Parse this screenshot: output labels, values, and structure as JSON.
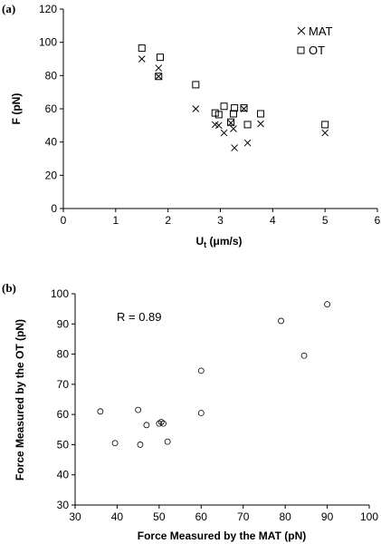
{
  "chart_data": [
    {
      "panel_label": "(a)",
      "type": "scatter",
      "xlabel": {
        "main": "U",
        "sub": "t",
        "rest": " (μm/s)"
      },
      "ylabel": "F (pN)",
      "xlim": [
        0,
        6
      ],
      "ylim": [
        0,
        120
      ],
      "xticks": [
        0,
        1,
        2,
        3,
        4,
        5,
        6
      ],
      "yticks": [
        0,
        20,
        40,
        60,
        80,
        100,
        120
      ],
      "grid": false,
      "legend_position": "top-right",
      "series": [
        {
          "name": "MAT",
          "marker": "x",
          "points": [
            [
              1.5,
              90
            ],
            [
              1.82,
              84.5
            ],
            [
              1.82,
              79.5
            ],
            [
              2.53,
              60
            ],
            [
              2.9,
              50.5
            ],
            [
              2.97,
              50
            ],
            [
              3.07,
              45.5
            ],
            [
              3.2,
              51.5
            ],
            [
              3.25,
              48
            ],
            [
              3.27,
              36.5
            ],
            [
              3.45,
              60
            ],
            [
              3.52,
              39.5
            ],
            [
              3.77,
              51
            ],
            [
              5.0,
              45.5
            ]
          ]
        },
        {
          "name": "OT",
          "marker": "square",
          "points": [
            [
              1.5,
              96.5
            ],
            [
              1.85,
              91
            ],
            [
              1.82,
              79.5
            ],
            [
              2.53,
              74.5
            ],
            [
              2.9,
              57.5
            ],
            [
              2.97,
              56.5
            ],
            [
              3.07,
              61.5
            ],
            [
              3.2,
              52
            ],
            [
              3.25,
              57
            ],
            [
              3.27,
              60.5
            ],
            [
              3.45,
              60.5
            ],
            [
              3.52,
              50.5
            ],
            [
              3.77,
              57
            ],
            [
              5.0,
              50.5
            ]
          ]
        }
      ]
    },
    {
      "panel_label": "(b)",
      "type": "scatter",
      "xlabel": "Force Measured by the MAT (pN)",
      "ylabel": "Force Measured by the OT (pN)",
      "xlim": [
        30,
        100
      ],
      "ylim": [
        30,
        100
      ],
      "xticks": [
        30,
        40,
        50,
        60,
        70,
        80,
        90,
        100
      ],
      "yticks": [
        30,
        40,
        50,
        60,
        70,
        80,
        90,
        100
      ],
      "grid": false,
      "annotation": "R = 0.89",
      "series": [
        {
          "marker": "circle",
          "points": [
            [
              36,
              61
            ],
            [
              39.5,
              50.5
            ],
            [
              45,
              61.5
            ],
            [
              45.5,
              50
            ],
            [
              47,
              56.5
            ],
            [
              50,
              57
            ],
            [
              50.5,
              57.5
            ],
            [
              51,
              57
            ],
            [
              52,
              51
            ],
            [
              60,
              74.5
            ],
            [
              60,
              60.5
            ],
            [
              79,
              91
            ],
            [
              84.5,
              79.5
            ],
            [
              90,
              96.5
            ]
          ]
        }
      ]
    }
  ]
}
